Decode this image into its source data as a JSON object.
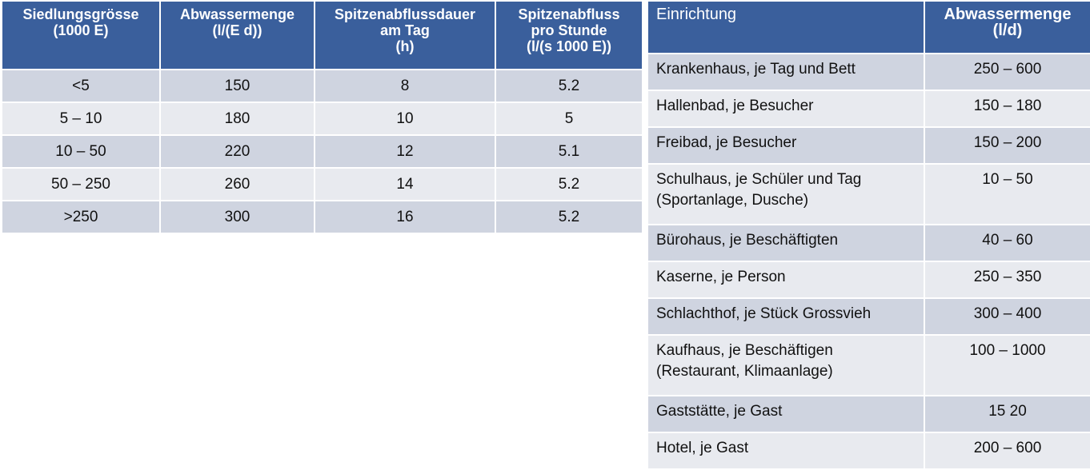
{
  "left_table": {
    "headers": [
      "Siedlungsgrösse\n(1000 E)",
      "Abwassermenge\n(l/(E d))",
      "Spitzenabflussdauer\nam Tag\n(h)",
      "Spitzenabfluss\npro Stunde\n(l/(s 1000 E))"
    ],
    "rows": [
      [
        "<5",
        "150",
        "8",
        "5.2"
      ],
      [
        "5 – 10",
        "180",
        "10",
        "5"
      ],
      [
        "10 – 50",
        "220",
        "12",
        "5.1"
      ],
      [
        "50 – 250",
        "260",
        "14",
        "5.2"
      ],
      [
        ">250",
        "300",
        "16",
        "5.2"
      ]
    ]
  },
  "right_table": {
    "headers": [
      "Einrichtung",
      "Abwassermenge\n(l/d)"
    ],
    "rows": [
      [
        "Krankenhaus, je Tag und Bett",
        "250 – 600"
      ],
      [
        "Hallenbad, je Besucher",
        "150 – 180"
      ],
      [
        "Freibad, je Besucher",
        "150 – 200"
      ],
      [
        "Schulhaus, je Schüler und Tag\n(Sportanlage, Dusche)",
        "10 – 50"
      ],
      [
        "Bürohaus, je Beschäftigten",
        "40 – 60"
      ],
      [
        "Kaserne, je Person",
        "250 – 350"
      ],
      [
        "Schlachthof, je Stück Grossvieh",
        "300 – 400"
      ],
      [
        "Kaufhaus, je Beschäftigen\n(Restaurant, Klimaanlage)",
        "100 – 1000"
      ],
      [
        "Gaststätte, je Gast",
        "15    20"
      ],
      [
        "Hotel, je Gast",
        "200 – 600"
      ]
    ]
  },
  "colors": {
    "header_bg": "#3a5f9c",
    "row_dark": "#cfd4e0",
    "row_light": "#e8eaef"
  }
}
